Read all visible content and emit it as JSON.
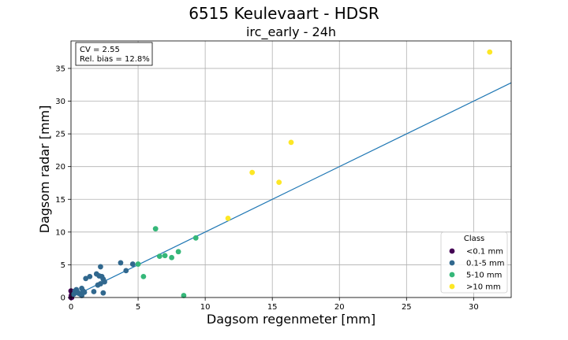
{
  "chart_data": {
    "type": "scatter",
    "title": "6515 Keulevaart - HDSR",
    "subtitle": "irc_early - 24h",
    "xlabel": "Dagsom regenmeter [mm]",
    "ylabel": "Dagsom radar [mm]",
    "xlim": [
      0,
      32.8
    ],
    "ylim": [
      0,
      39.2
    ],
    "xticks": [
      0,
      5,
      10,
      15,
      20,
      25,
      30
    ],
    "yticks": [
      0,
      5,
      10,
      15,
      20,
      25,
      30,
      35
    ],
    "grid": true,
    "annotation": [
      "CV = 2.55",
      "Rel. bias = 12.8%"
    ],
    "legend": {
      "title": "Class",
      "placement": "lower-right",
      "entries": [
        {
          "label": "<0.1 mm",
          "color": "#440154"
        },
        {
          "label": "0.1-5 mm",
          "color": "#31688e"
        },
        {
          "label": "5-10 mm",
          "color": "#35b779"
        },
        {
          "label": ">10 mm",
          "color": "#fde725"
        }
      ]
    },
    "fit_line": {
      "slope": 1.0,
      "intercept": 0.0,
      "color": "#1f77b4"
    },
    "series": [
      {
        "name": "<0.1 mm",
        "color": "#440154",
        "points": [
          [
            0.0,
            0.0
          ],
          [
            0.05,
            0.0
          ],
          [
            0.02,
            0.3
          ],
          [
            0.08,
            0.6
          ],
          [
            0.0,
            1.0
          ],
          [
            0.05,
            0.9
          ]
        ]
      },
      {
        "name": "0.1-5 mm",
        "color": "#31688e",
        "points": [
          [
            0.2,
            0.5
          ],
          [
            0.3,
            1.0
          ],
          [
            0.4,
            1.2
          ],
          [
            0.5,
            0.8
          ],
          [
            0.6,
            0.6
          ],
          [
            0.8,
            1.4
          ],
          [
            0.9,
            1.0
          ],
          [
            1.0,
            0.8
          ],
          [
            0.8,
            0.3
          ],
          [
            1.1,
            2.9
          ],
          [
            1.4,
            3.2
          ],
          [
            1.7,
            0.9
          ],
          [
            1.9,
            3.6
          ],
          [
            2.0,
            1.9
          ],
          [
            2.1,
            3.3
          ],
          [
            2.2,
            4.7
          ],
          [
            2.2,
            2.1
          ],
          [
            2.3,
            3.2
          ],
          [
            2.4,
            2.8
          ],
          [
            2.4,
            0.7
          ],
          [
            2.5,
            2.4
          ],
          [
            3.7,
            5.3
          ],
          [
            4.1,
            4.1
          ],
          [
            4.6,
            5.1
          ]
        ]
      },
      {
        "name": "5-10 mm",
        "color": "#35b779",
        "points": [
          [
            5.0,
            5.1
          ],
          [
            5.4,
            3.2
          ],
          [
            6.3,
            10.5
          ],
          [
            6.6,
            6.3
          ],
          [
            7.0,
            6.4
          ],
          [
            7.5,
            6.1
          ],
          [
            8.0,
            7.0
          ],
          [
            8.4,
            0.3
          ],
          [
            9.3,
            9.1
          ]
        ]
      },
      {
        "name": ">10 mm",
        "color": "#fde725",
        "points": [
          [
            11.7,
            12.1
          ],
          [
            13.5,
            19.1
          ],
          [
            15.5,
            17.6
          ],
          [
            16.4,
            23.7
          ],
          [
            31.2,
            37.5
          ]
        ]
      }
    ]
  }
}
